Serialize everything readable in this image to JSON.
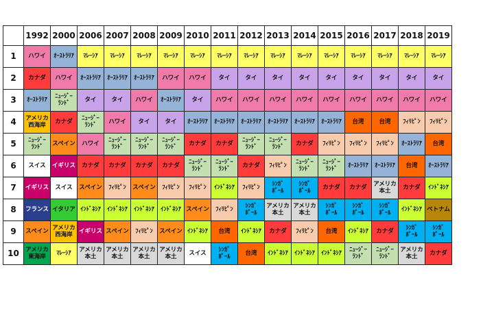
{
  "years": [
    "1992",
    "2000",
    "2006",
    "2007",
    "2008",
    "2009",
    "2010",
    "2011",
    "2012",
    "2013",
    "2014",
    "2015",
    "2016",
    "2017",
    "2018",
    "2019"
  ],
  "palette": {
    "ハワイ": "#f07aa8",
    "オーストラリア": "#95b3d7",
    "マレーシア": "#ffff66",
    "カナダ": "#ff3b3b",
    "タイ": "#c9a3ea",
    "ニュージーランド": "#c4e0b0",
    "アメリカ\n西海岸": "#ffc000",
    "スペイン": "#ff8c1a",
    "スイス": "#ffffff",
    "イギリス": "#c8006a",
    "フランス": "#2b3f8f",
    "アメリカ\n東海岸": "#00a650",
    "イタリア": "#33cc33",
    "インドネシア": "#ccff33",
    "フィリピン": "#f8cbad",
    "台湾": "#ff6600",
    "アメリカ\n本土": "#d9d9d9",
    "シンガポール": "#00b0f0",
    "ベトナム": "#b8860b"
  },
  "rows": [
    {
      "rank": "1",
      "cells": [
        "ハワイ",
        "オーストラリア",
        "マレーシア",
        "マレーシア",
        "マレーシア",
        "マレーシア",
        "マレーシア",
        "マレーシア",
        "マレーシア",
        "マレーシア",
        "マレーシア",
        "マレーシア",
        "マレーシア",
        "マレーシア",
        "マレーシア",
        "マレーシア"
      ]
    },
    {
      "rank": "2",
      "cells": [
        "カナダ",
        "ハワイ",
        "オーストラリア",
        "オーストラリア",
        "オーストラリア",
        "ハワイ",
        "ハワイ",
        "タイ",
        "タイ",
        "タイ",
        "タイ",
        "タイ",
        "タイ",
        "タイ",
        "タイ",
        "タイ"
      ]
    },
    {
      "rank": "3",
      "cells": [
        "オーストラリア",
        "ニュージーランド",
        "タイ",
        "タイ",
        "ハワイ",
        "オーストラリア",
        "タイ",
        "ハワイ",
        "ハワイ",
        "ハワイ",
        "ハワイ",
        "ハワイ",
        "ハワイ",
        "ハワイ",
        "ハワイ",
        "ハワイ"
      ]
    },
    {
      "rank": "4",
      "cells": [
        "アメリカ\n西海岸",
        "カナダ",
        "ニュージーランド",
        "ハワイ",
        "タイ",
        "タイ",
        "オーストラリア",
        "オーストラリア",
        "オーストラリア",
        "オーストラリア",
        "オーストラリア",
        "オーストラリア",
        "台湾",
        "台湾",
        "フィリピン",
        "フィリピン"
      ]
    },
    {
      "rank": "5",
      "cells": [
        "ニュージーランド",
        "スペイン",
        "ハワイ",
        "ニュージーランド",
        "ニュージーランド",
        "ニュージーランド",
        "カナダ",
        "カナダ",
        "ニュージーランド",
        "ニュージーランド",
        "カナダ",
        "フィリピン",
        "フィリピン",
        "フィリピン",
        "オーストラリア",
        "台湾"
      ]
    },
    {
      "rank": "6",
      "cells": [
        "スイス",
        "イギリス",
        "カナダ",
        "カナダ",
        "カナダ",
        "カナダ",
        "ニュージーランド",
        "ニュージーランド",
        "カナダ",
        "フィリピン",
        "ニュージーランド",
        "ニュージーランド",
        "オーストラリア",
        "オーストラリア",
        "台湾",
        "オーストラリア"
      ]
    },
    {
      "rank": "7",
      "cells": [
        "イギリス",
        "スイス",
        "スペイン",
        "フィリピン",
        "スペイン",
        "フィリピン",
        "フィリピン",
        "インドネシア",
        "フィリピン",
        "シンガポール",
        "シンガポール",
        "カナダ",
        "カナダ",
        "アメリカ\n本土",
        "カナダ",
        "インドネシア"
      ]
    },
    {
      "rank": "8",
      "cells": [
        "フランス",
        "イタリア",
        "インドネシア",
        "インドネシア",
        "インドネシア",
        "インドネシア",
        "スペイン",
        "フィリピン",
        "シンガポール",
        "アメリカ\n本土",
        "アメリカ\n本土",
        "シンガポール",
        "シンガポール",
        "シンガポール",
        "インドネシア",
        "ベトナム"
      ]
    },
    {
      "rank": "9",
      "cells": [
        "スペイン",
        "アメリカ\n西海岸",
        "イギリス",
        "スペイン",
        "フィリピン",
        "スペイン",
        "インドネシア",
        "台湾",
        "インドネシア",
        "カナダ",
        "フィリピン",
        "台湾",
        "インドネシア",
        "カナダ",
        "シンガポール",
        "シンガポール"
      ]
    },
    {
      "rank": "10",
      "cells": [
        "アメリカ\n東海岸",
        "マレーシア",
        "アメリカ\n本土",
        "アメリカ\n本土",
        "アメリカ\n本土",
        "アメリカ\n本土",
        "スイス",
        "シンガポール",
        "台湾",
        "インドネシア",
        "インドネシア",
        "インドネシア",
        "ニュージーランド",
        "ニュージーランド",
        "アメリカ\n本土",
        "カナダ"
      ]
    }
  ],
  "display": {
    "オーストラリア": "ｵｰｽﾄﾗﾘｱ",
    "マレーシア": "ﾏﾚｰｼｱ",
    "ニュージーランド": "ﾆｭｰｼﾞｰ\nﾗﾝﾄﾞ",
    "フィリピン": "ﾌｨﾘﾋﾟﾝ",
    "インドネシア": "ｲﾝﾄﾞﾈｼｱ",
    "シンガポール": "ｼﾝｶﾞ\nﾎﾟｰﾙ"
  },
  "dark_text": [
    "イギリス",
    "フランス"
  ]
}
